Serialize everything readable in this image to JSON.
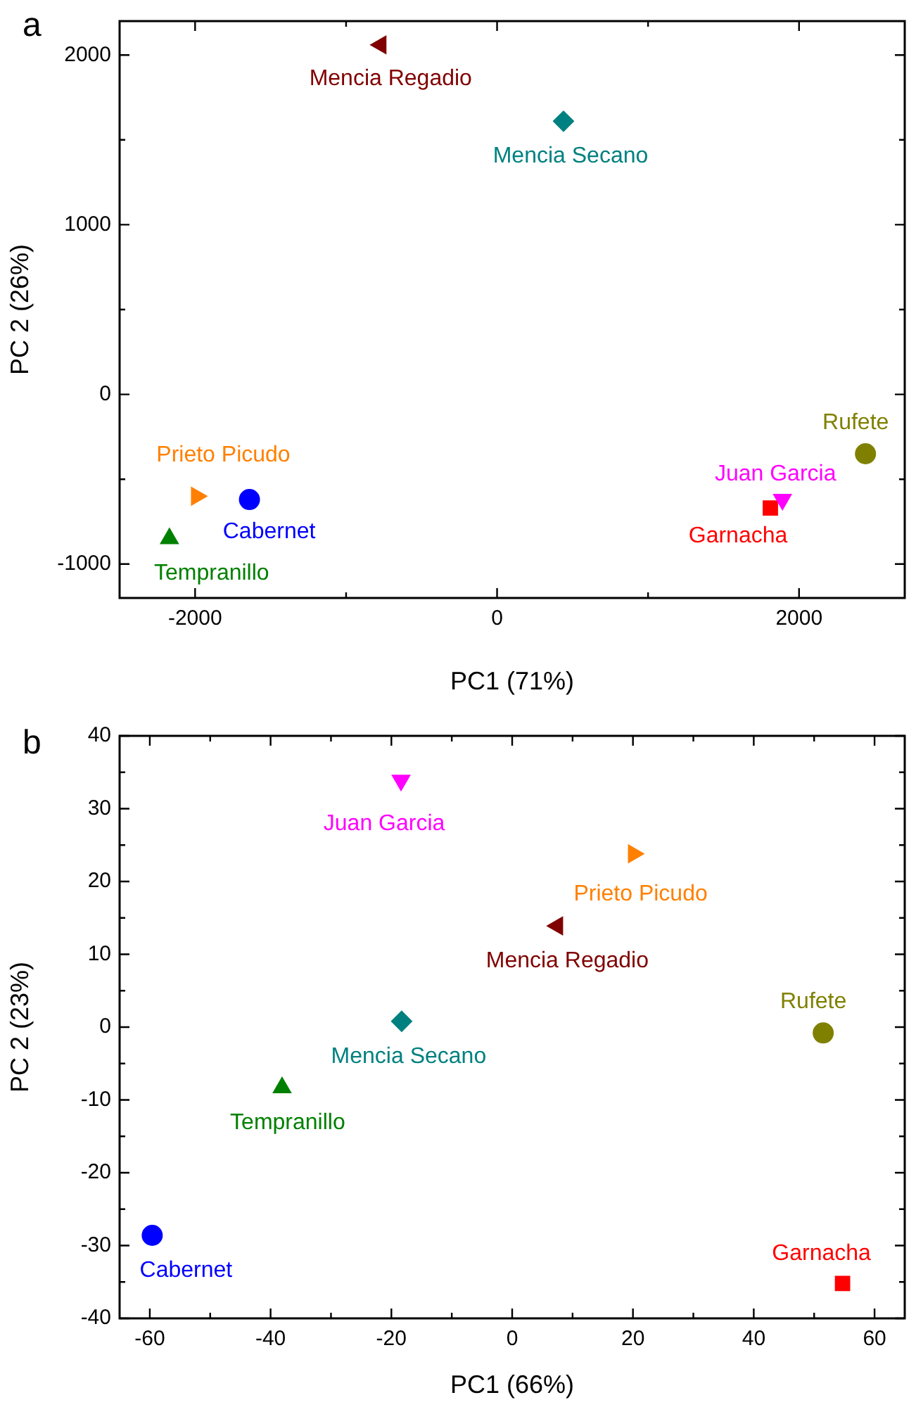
{
  "chart_data": [
    {
      "type": "scatter",
      "title": "a",
      "xlabel": "PC1 (71%)",
      "ylabel": "PC 2 (26%)",
      "legend": false,
      "grid": false,
      "xlim": [
        -2500,
        2700
      ],
      "xticks": [
        -2000,
        {
          "value": -1000,
          "label": null
        },
        0,
        {
          "value": 1000,
          "label": null
        },
        2000
      ],
      "ylim": [
        -1200,
        2200
      ],
      "yticks": [
        -1000,
        {
          "value": -500,
          "label": null
        },
        0,
        {
          "value": 500,
          "label": null
        },
        1000,
        {
          "value": 1500,
          "label": null
        },
        2000
      ],
      "series": [
        {
          "name": "Cabernet",
          "color": "#0000ff",
          "marker": "circle",
          "x": [
            -1640
          ],
          "values": [
            -620
          ]
        },
        {
          "name": "Tempranillo",
          "color": "#008000",
          "marker": "triangle",
          "x": [
            -2170
          ],
          "values": [
            -850
          ]
        },
        {
          "name": "Prieto Picudo",
          "color": "#ff8000",
          "marker": "triangle-right",
          "x": [
            -1990
          ],
          "values": [
            -600
          ]
        },
        {
          "name": "Mencia Regadio",
          "color": "#800000",
          "marker": "triangle-left",
          "x": [
            -770
          ],
          "values": [
            2060
          ]
        },
        {
          "name": "Mencia Secano",
          "color": "#008080",
          "marker": "diamond",
          "x": [
            440
          ],
          "values": [
            1610
          ]
        },
        {
          "name": "Juan Garcia",
          "color": "#ff00ff",
          "marker": "triangle-down",
          "x": [
            1890
          ],
          "values": [
            -620
          ]
        },
        {
          "name": "Garnacha",
          "color": "#ff0000",
          "marker": "square",
          "x": [
            1810
          ],
          "values": [
            -670
          ]
        },
        {
          "name": "Rufete",
          "color": "#808000",
          "x": [
            2440
          ],
          "values": [
            -350
          ]
        }
      ]
    },
    {
      "type": "scatter",
      "title": "b",
      "xlabel": "PC1 (66%)",
      "ylabel": "PC 2 (23%)",
      "legend": false,
      "grid": false,
      "xlim": [
        -65,
        65
      ],
      "xticks": [
        -60,
        {
          "value": -50,
          "label": null
        },
        -40,
        {
          "value": -30,
          "label": null
        },
        -20,
        {
          "value": -10,
          "label": null
        },
        0,
        {
          "value": 10,
          "label": null
        },
        20,
        {
          "value": 30,
          "label": null
        },
        40,
        {
          "value": 50,
          "label": null
        },
        60
      ],
      "ylim": [
        -40,
        40
      ],
      "yticks": [
        -40,
        {
          "value": -35,
          "label": null
        },
        -30,
        {
          "value": -25,
          "label": null
        },
        -20,
        {
          "value": -15,
          "label": null
        },
        -10,
        {
          "value": -5,
          "label": null
        },
        0,
        {
          "value": 5,
          "label": null
        },
        10,
        {
          "value": 15,
          "label": null
        },
        20,
        {
          "value": 25,
          "label": null
        },
        30,
        {
          "value": 35,
          "label": null
        },
        40
      ],
      "series": [
        {
          "name": "Cabernet",
          "color": "#0000ff",
          "marker": "circle",
          "x": [
            -59.6
          ],
          "values": [
            -28.6
          ]
        },
        {
          "name": "Tempranillo",
          "color": "#008000",
          "marker": "triangle",
          "x": [
            -38.1
          ],
          "values": [
            -8.3
          ]
        },
        {
          "name": "Prieto Picudo",
          "color": "#ff8000",
          "marker": "triangle-right",
          "x": [
            20.1
          ],
          "values": [
            23.8
          ]
        },
        {
          "name": "Mencia Regadio",
          "color": "#800000",
          "marker": "triangle-left",
          "x": [
            7.5
          ],
          "values": [
            13.9
          ]
        },
        {
          "name": "Mencia Secano",
          "color": "#008080",
          "marker": "diamond",
          "x": [
            -18.3
          ],
          "values": [
            0.8
          ]
        },
        {
          "name": "Juan Garcia",
          "color": "#ff00ff",
          "marker": "triangle-down",
          "x": [
            -18.4
          ],
          "values": [
            33.9
          ]
        },
        {
          "name": "Garnacha",
          "color": "#ff0000",
          "marker": "square",
          "x": [
            54.7
          ],
          "values": [
            -35.2
          ]
        },
        {
          "name": "Rufete",
          "color": "#808000",
          "x": [
            51.5
          ],
          "values": [
            -0.8
          ]
        }
      ]
    }
  ]
}
